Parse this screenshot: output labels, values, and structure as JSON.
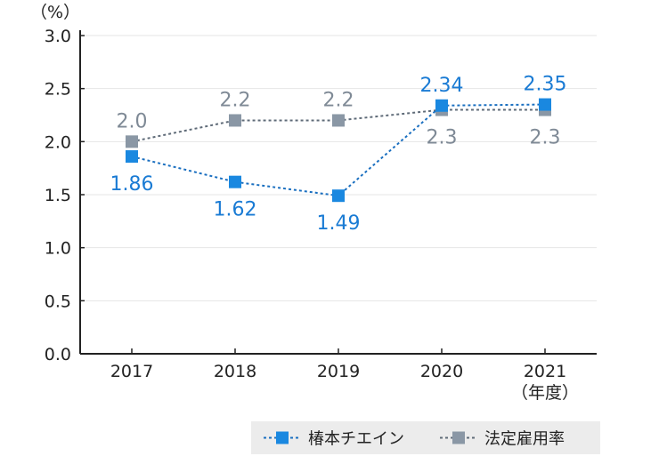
{
  "chart_data": {
    "type": "line",
    "y_unit_label": "（%）",
    "x_unit_label": "（年度）",
    "categories": [
      "2017",
      "2018",
      "2019",
      "2020",
      "2021"
    ],
    "ylim": [
      0,
      3.0
    ],
    "y_ticks": [
      "0.0",
      "0.5",
      "1.0",
      "1.5",
      "2.0",
      "2.5",
      "3.0"
    ],
    "grid": true,
    "legend_position": "bottom-right",
    "series": [
      {
        "name": "椿本チエイン",
        "color": "#1a88e0",
        "values": [
          1.86,
          1.62,
          1.49,
          2.34,
          2.35
        ],
        "labels": [
          "1.86",
          "1.62",
          "1.49",
          "2.34",
          "2.35"
        ]
      },
      {
        "name": "法定雇用率",
        "color": "#8a97a5",
        "values": [
          2.0,
          2.2,
          2.2,
          2.3,
          2.3
        ],
        "labels": [
          "2.0",
          "2.2",
          "2.2",
          "2.3",
          "2.3"
        ]
      }
    ]
  }
}
